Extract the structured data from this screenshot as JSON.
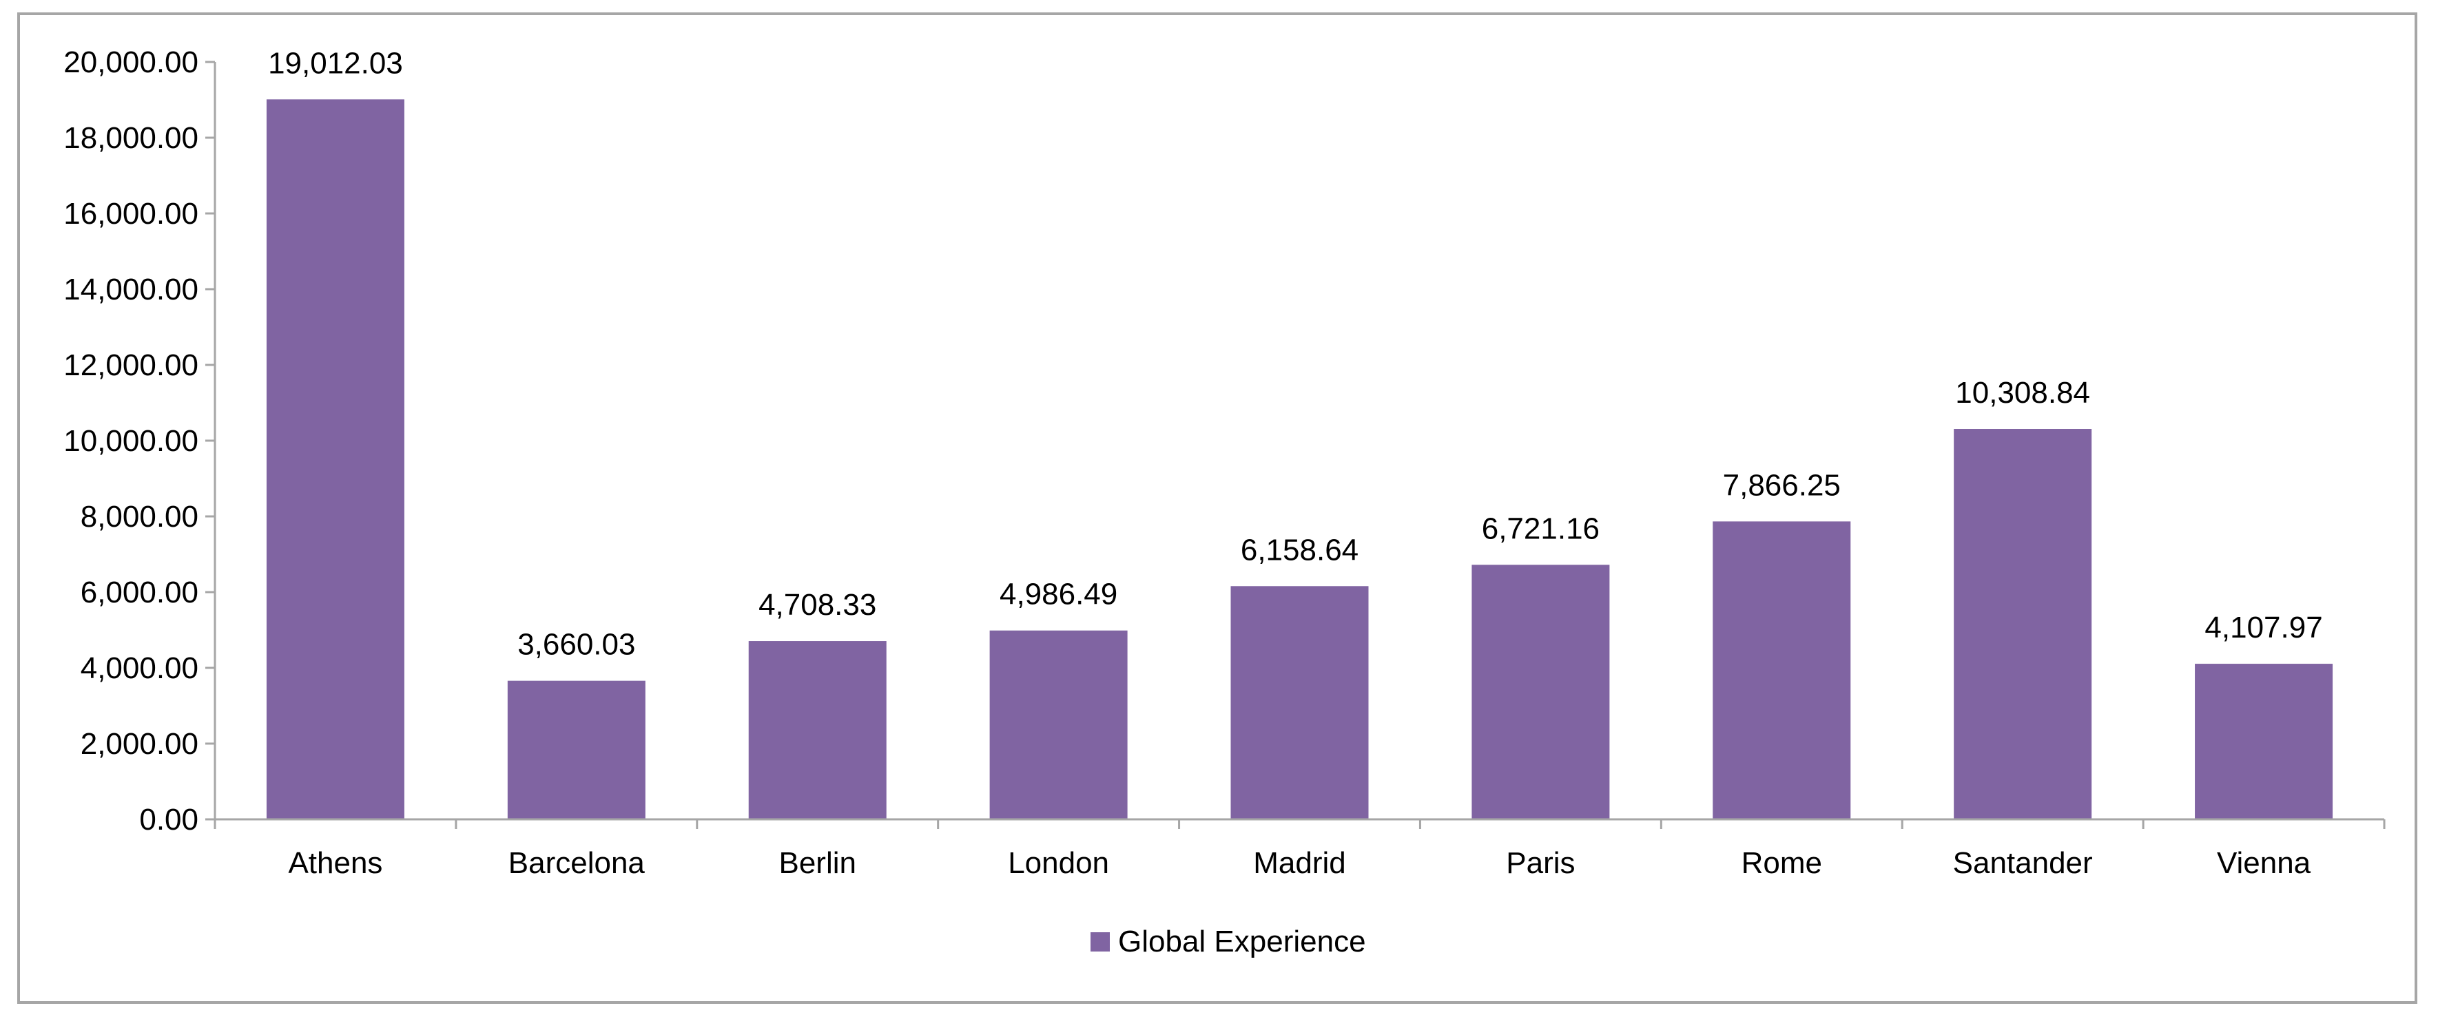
{
  "chart_data": {
    "type": "bar",
    "categories": [
      "Athens",
      "Barcelona",
      "Berlin",
      "London",
      "Madrid",
      "Paris",
      "Rome",
      "Santander",
      "Vienna"
    ],
    "series": [
      {
        "name": "Global Experience",
        "values": [
          19012.03,
          3660.03,
          4708.33,
          4986.49,
          6158.64,
          6721.16,
          7866.25,
          10308.84,
          4107.97
        ],
        "color": "#8064a2"
      }
    ],
    "data_labels": [
      "19,012.03",
      "3,660.03",
      "4,708.33",
      "4,986.49",
      "6,158.64",
      "6,721.16",
      "7,866.25",
      "10,308.84",
      "4,107.97"
    ],
    "y_ticks": [
      0,
      2000,
      4000,
      6000,
      8000,
      10000,
      12000,
      14000,
      16000,
      18000,
      20000
    ],
    "y_tick_labels": [
      "0.00",
      "2,000.00",
      "4,000.00",
      "6,000.00",
      "8,000.00",
      "10,000.00",
      "12,000.00",
      "14,000.00",
      "16,000.00",
      "18,000.00",
      "20,000.00"
    ],
    "ylim": [
      0,
      20000
    ],
    "title": "",
    "xlabel": "",
    "ylabel": "",
    "grid": false,
    "legend": {
      "position": "bottom",
      "entries": [
        "Global Experience"
      ]
    },
    "colors": {
      "bar": "#8064a2",
      "axis": "#a6a6a6",
      "frame": "#a6a6a6"
    }
  }
}
